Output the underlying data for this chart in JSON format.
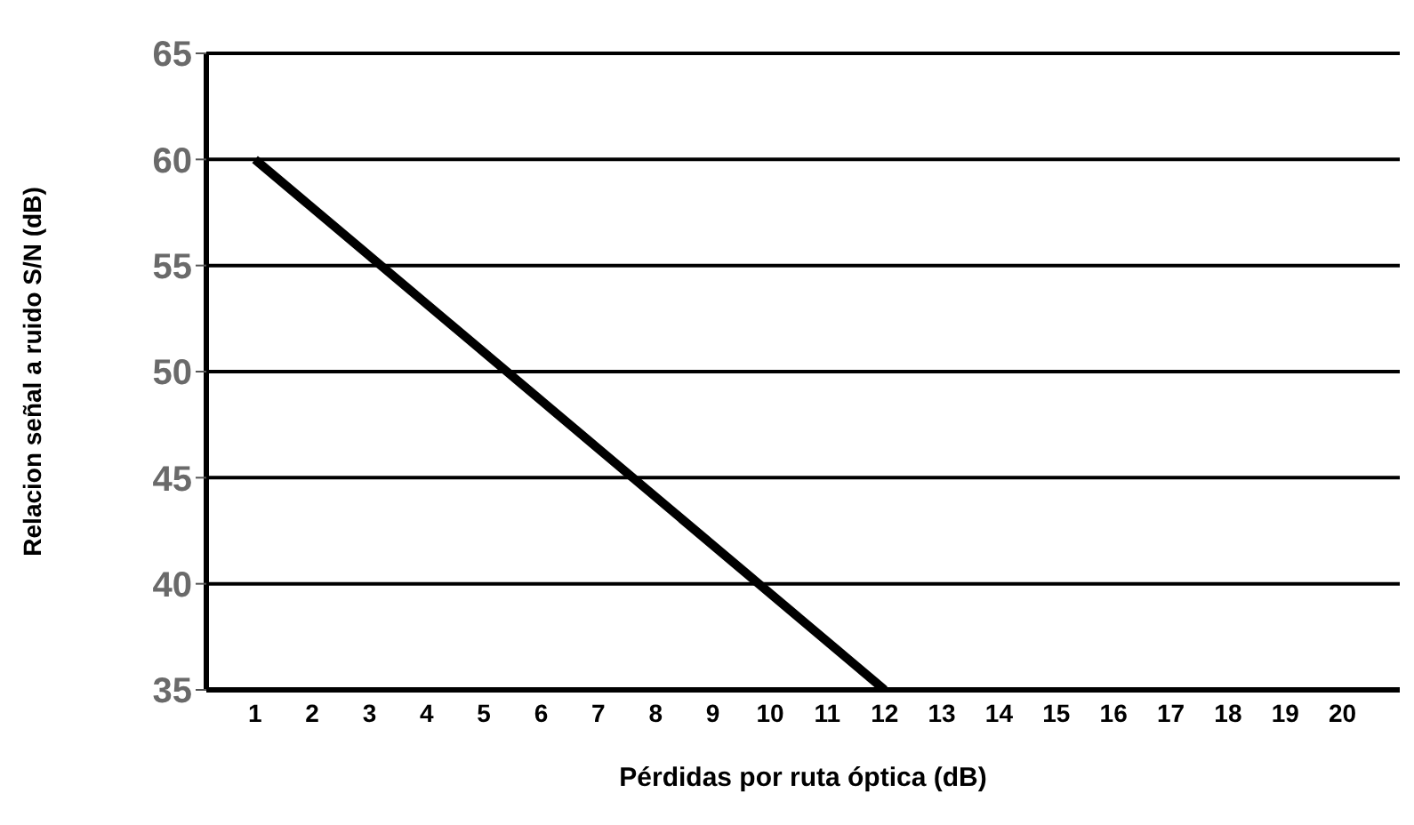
{
  "chart_data": {
    "type": "line",
    "xlabel": "Pérdidas por ruta óptica (dB)",
    "ylabel": "Relacion señal a ruido S/N (dB)",
    "x": [
      1,
      12
    ],
    "series": [
      {
        "color": "#000000",
        "values": [
          60,
          35
        ]
      }
    ],
    "xlim": [
      0.15,
      21
    ],
    "xticks": [
      1,
      2,
      3,
      4,
      5,
      6,
      7,
      8,
      9,
      10,
      11,
      12,
      13,
      14,
      15,
      16,
      17,
      18,
      19,
      20
    ],
    "ylim": [
      35,
      65
    ],
    "yticks": [
      35,
      40,
      45,
      50,
      55,
      60,
      65
    ],
    "grid": "y",
    "marker": "none",
    "line_style": "solid",
    "legend": false
  }
}
